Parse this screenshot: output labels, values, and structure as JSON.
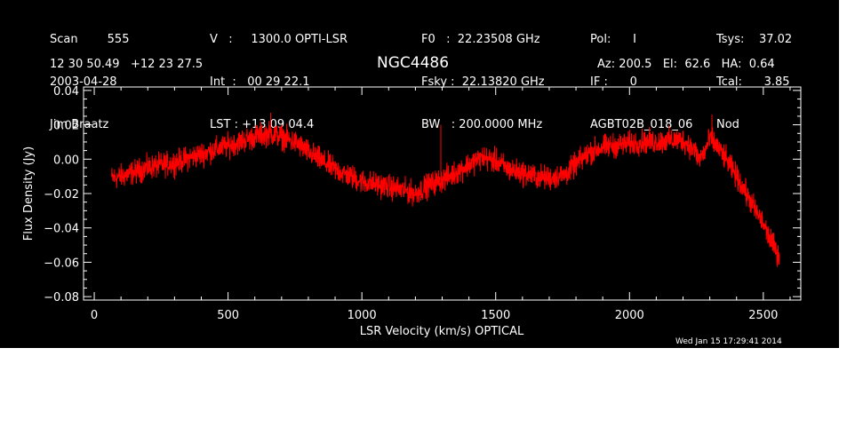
{
  "header": {
    "col1": [
      "Scan        555",
      "2003-04-28",
      "Jim Braatz"
    ],
    "col2": [
      "V   :     1300.0 OPTI-LSR",
      "Int  :   00 29 22.1",
      "LST : +13 09 04.4"
    ],
    "col3": [
      "F0   :  22.23508 GHz",
      "Fsky :  22.13820 GHz",
      "BW   : 200.0000 MHz"
    ],
    "col4": [
      "Pol:      I",
      "IF :      0",
      "AGBT02B_018_06"
    ],
    "col5": [
      "Tsys:    37.02",
      "Tcal:      3.85",
      "Nod"
    ],
    "coords": "12 30 50.49   +12 23 27.5",
    "source": "NGC4486",
    "azel": "Az: 200.5   El:  62.6   HA:  0.64",
    "timestamp": "Wed Jan 15 17:29:41 2014"
  },
  "colors": {
    "background": "#000000",
    "foreground": "#ffffff",
    "series": "#ff0000"
  },
  "chart_data": {
    "type": "line",
    "title": "NGC4486",
    "xlabel": "LSR Velocity (km/s) OPTICAL",
    "ylabel": "Flux Density (Jy)",
    "xlim": [
      -40,
      2640
    ],
    "ylim": [
      -0.082,
      0.042
    ],
    "xticks": [
      0,
      500,
      1000,
      1500,
      2000,
      2500
    ],
    "xtick_labels": [
      "0",
      "500",
      "1000",
      "1500",
      "2000",
      "2500"
    ],
    "yticks": [
      0.04,
      0.02,
      0.0,
      -0.02,
      -0.04,
      -0.06,
      -0.08
    ],
    "ytick_labels": [
      "0.04",
      "0.02",
      "0.00",
      "−0.02",
      "−0.04",
      "−0.06",
      "−0.08"
    ],
    "grid": false,
    "series": [
      {
        "noise_amplitude": 0.006,
        "x": [
          65,
          100,
          200,
          300,
          400,
          500,
          560,
          620,
          660,
          700,
          760,
          800,
          900,
          1000,
          1100,
          1200,
          1250,
          1300,
          1350,
          1400,
          1450,
          1500,
          1550,
          1600,
          1650,
          1700,
          1760,
          1800,
          1850,
          1900,
          1950,
          2000,
          2050,
          2100,
          2150,
          2200,
          2240,
          2260,
          2280,
          2300,
          2330,
          2360,
          2400,
          2450,
          2500,
          2530,
          2560
        ],
        "y": [
          -0.011,
          -0.01,
          -0.005,
          -0.002,
          0.003,
          0.008,
          0.011,
          0.014,
          0.015,
          0.013,
          0.009,
          0.004,
          -0.006,
          -0.013,
          -0.016,
          -0.02,
          -0.015,
          -0.012,
          -0.008,
          -0.003,
          0.001,
          -0.001,
          -0.006,
          -0.008,
          -0.01,
          -0.011,
          -0.009,
          -0.003,
          0.004,
          0.007,
          0.008,
          0.009,
          0.01,
          0.01,
          0.011,
          0.011,
          0.006,
          0.0,
          0.004,
          0.012,
          0.007,
          0.0,
          -0.01,
          -0.024,
          -0.038,
          -0.048,
          -0.057
        ]
      }
    ],
    "spikes": [
      {
        "x": 1295,
        "y": 0.02
      },
      {
        "x": 2308,
        "y": 0.026
      },
      {
        "x": 659,
        "y": 0.027
      }
    ]
  }
}
